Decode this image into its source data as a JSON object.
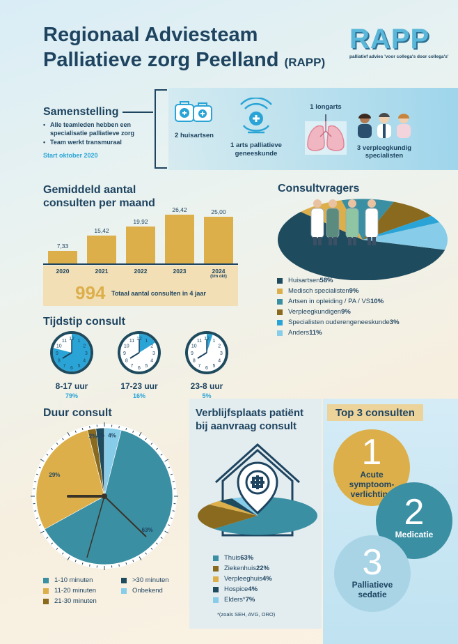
{
  "header": {
    "title_line1": "Regionaal Adviesteam",
    "title_line2": "Palliatieve zorg Peelland",
    "title_suffix": "(RAPP)",
    "logo_word": "RAPP",
    "logo_tagline": "palliatief advies 'voor collega's door collega's'"
  },
  "composition": {
    "heading": "Samenstelling",
    "bullets": [
      "Alle teamleden hebben een specialisatie palliatieve zorg",
      "Team werkt transmuraal"
    ],
    "start": "Start oktober 2020",
    "members": [
      {
        "label": "2 huisartsen",
        "icon": "medical-bag-icon"
      },
      {
        "label": "1 arts palliatieve geneeskunde",
        "icon": "hand-cross-icon"
      },
      {
        "label": "1 longarts",
        "icon": "lungs-icon"
      },
      {
        "label": "3 verpleegkundig specialisten",
        "icon": "nurses-icon"
      }
    ]
  },
  "consults_per_month": {
    "heading_line1": "Gemiddeld aantal",
    "heading_line2": "consulten per maand",
    "total_number": "994",
    "total_label": "Totaal aantal consulten in 4 jaar",
    "year_note": "(t/m okt)",
    "value_labels": [
      "7,33",
      "15,42",
      "19,92",
      "26,42",
      "25,00"
    ]
  },
  "consult_time": {
    "heading": "Tijdstip consult",
    "clocks": [
      {
        "label": "8-17 uur",
        "pct": "79%",
        "fraction": 0.79
      },
      {
        "label": "17-23 uur",
        "pct": "16%",
        "fraction": 0.16
      },
      {
        "label": "23-8 uur",
        "pct": "5%",
        "fraction": 0.05
      }
    ]
  },
  "requesters": {
    "heading": "Consultvragers",
    "legend": [
      {
        "label": "Huisartsen",
        "pct": "58%",
        "color": "#1f4b5e"
      },
      {
        "label": "Medisch specialisten",
        "pct": "9%",
        "color": "#dcaf4b"
      },
      {
        "label": "Artsen in opleiding / PA / VS",
        "pct": "10%",
        "color": "#3a8fa3"
      },
      {
        "label": "Verpleegkundigen",
        "pct": "9%",
        "color": "#8a6a1f"
      },
      {
        "label": "Specialisten ouderengeneeskunde",
        "pct": "3%",
        "color": "#2aa4d6"
      },
      {
        "label": "Anders",
        "pct": "11%",
        "color": "#87cce8"
      }
    ]
  },
  "duration": {
    "heading": "Duur consult",
    "slice_labels": [
      "63%",
      "29%",
      "2%",
      "2%",
      "4%"
    ],
    "legend": [
      {
        "label": "1-10 minuten",
        "color": "#3a8fa3"
      },
      {
        "label": ">30 minuten",
        "color": "#1f4b5e"
      },
      {
        "label": "11-20 minuten",
        "color": "#dcaf4b"
      },
      {
        "label": "Onbekend",
        "color": "#87cce8"
      },
      {
        "label": "21-30 minuten",
        "color": "#8a6a1f"
      }
    ]
  },
  "residence": {
    "heading_line1": "Verblijfsplaats patiënt",
    "heading_line2": "bij aanvraag consult",
    "legend": [
      {
        "label": "Thuis",
        "pct": "63%",
        "color": "#3a8fa3"
      },
      {
        "label": "Ziekenhuis",
        "pct": "22%",
        "color": "#8a6a1f"
      },
      {
        "label": "Verpleeghuis",
        "pct": "4%",
        "color": "#dcaf4b"
      },
      {
        "label": "Hospice",
        "pct": "4%",
        "color": "#1f4b5e"
      },
      {
        "label": "Elders*",
        "pct": "7%",
        "color": "#87cce8"
      }
    ],
    "footnote": "*(zoals SEH, AVG, ORO)"
  },
  "top3": {
    "heading": "Top 3 consulten",
    "items": [
      {
        "num": "1",
        "line1": "Acute",
        "line2": "symptoom-",
        "line3": "verlichting"
      },
      {
        "num": "2",
        "line1": "Medicatie"
      },
      {
        "num": "3",
        "line1": "Palliatieve",
        "line2": "sedatie"
      }
    ]
  },
  "chart_data": [
    {
      "type": "bar",
      "title": "Gemiddeld aantal consulten per maand",
      "categories": [
        "2020",
        "2021",
        "2022",
        "2023",
        "2024"
      ],
      "values": [
        7.33,
        15.42,
        19.92,
        26.42,
        25.0
      ],
      "ylim": [
        0,
        30
      ]
    },
    {
      "type": "pie",
      "title": "Consultvragers",
      "categories": [
        "Huisartsen",
        "Medisch specialisten",
        "Artsen in opleiding / PA / VS",
        "Verpleegkundigen",
        "Specialisten ouderengeneeskunde",
        "Anders"
      ],
      "values": [
        58,
        9,
        10,
        9,
        3,
        11
      ]
    },
    {
      "type": "pie",
      "title": "Duur consult",
      "categories": [
        "1-10 minuten",
        "11-20 minuten",
        "21-30 minuten",
        ">30 minuten",
        "Onbekend"
      ],
      "values": [
        63,
        29,
        2,
        2,
        4
      ]
    },
    {
      "type": "pie",
      "title": "Verblijfsplaats patiënt bij aanvraag consult",
      "categories": [
        "Thuis",
        "Ziekenhuis",
        "Verpleeghuis",
        "Hospice",
        "Elders*"
      ],
      "values": [
        63,
        22,
        4,
        4,
        7
      ]
    }
  ]
}
